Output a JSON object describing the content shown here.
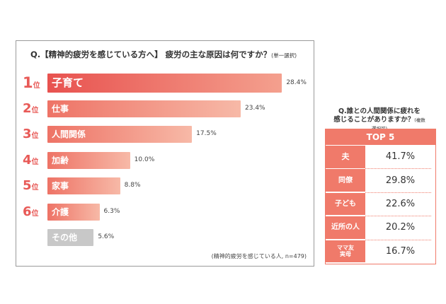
{
  "left_panel": {
    "title": "Q.【精神的疲労を感じている方へ】 疲労の主な原因は何ですか？",
    "title_sub": "(単一選択)",
    "footnote": "(精神的疲労を感じている人, n=479)"
  },
  "right_panel": {
    "title_line1": "Q.誰との人間関係に疲れを",
    "title_line2": "感じることがありますか？",
    "title_sub": "(複数選択可)",
    "header": "TOP 5"
  },
  "chart_data": [
    {
      "type": "bar",
      "title": "Q.【精神的疲労を感じている方へ】 疲労の主な原因は何ですか？",
      "categories": [
        "子育て",
        "仕事",
        "人間関係",
        "加齢",
        "家事",
        "介護",
        "その他"
      ],
      "ranks": [
        "1",
        "2",
        "3",
        "4",
        "5",
        "6",
        ""
      ],
      "rank_unit": "位",
      "values": [
        28.4,
        23.4,
        17.5,
        10.0,
        8.8,
        6.3,
        5.6
      ],
      "value_labels": [
        "28.4%",
        "23.4%",
        "17.5%",
        "10.0%",
        "8.8%",
        "6.3%",
        "5.6%"
      ],
      "xlim": [
        0,
        30
      ],
      "colors": {
        "top": "#e8524f",
        "others": "#f4a08e",
        "other_category": "#c8c8c8",
        "rank_text": "#e85a57"
      }
    },
    {
      "type": "table",
      "title": "Q.誰との人間関係に疲れを感じることがありますか？",
      "header": "TOP 5",
      "rows": [
        {
          "label": "夫",
          "value": "41.7%"
        },
        {
          "label": "同僚",
          "value": "29.8%"
        },
        {
          "label": "子ども",
          "value": "22.6%"
        },
        {
          "label": "近所の人",
          "value": "20.2%"
        },
        {
          "label": "ママ友\n実母",
          "value": "16.7%"
        }
      ],
      "accent": "#f07a6a"
    }
  ]
}
